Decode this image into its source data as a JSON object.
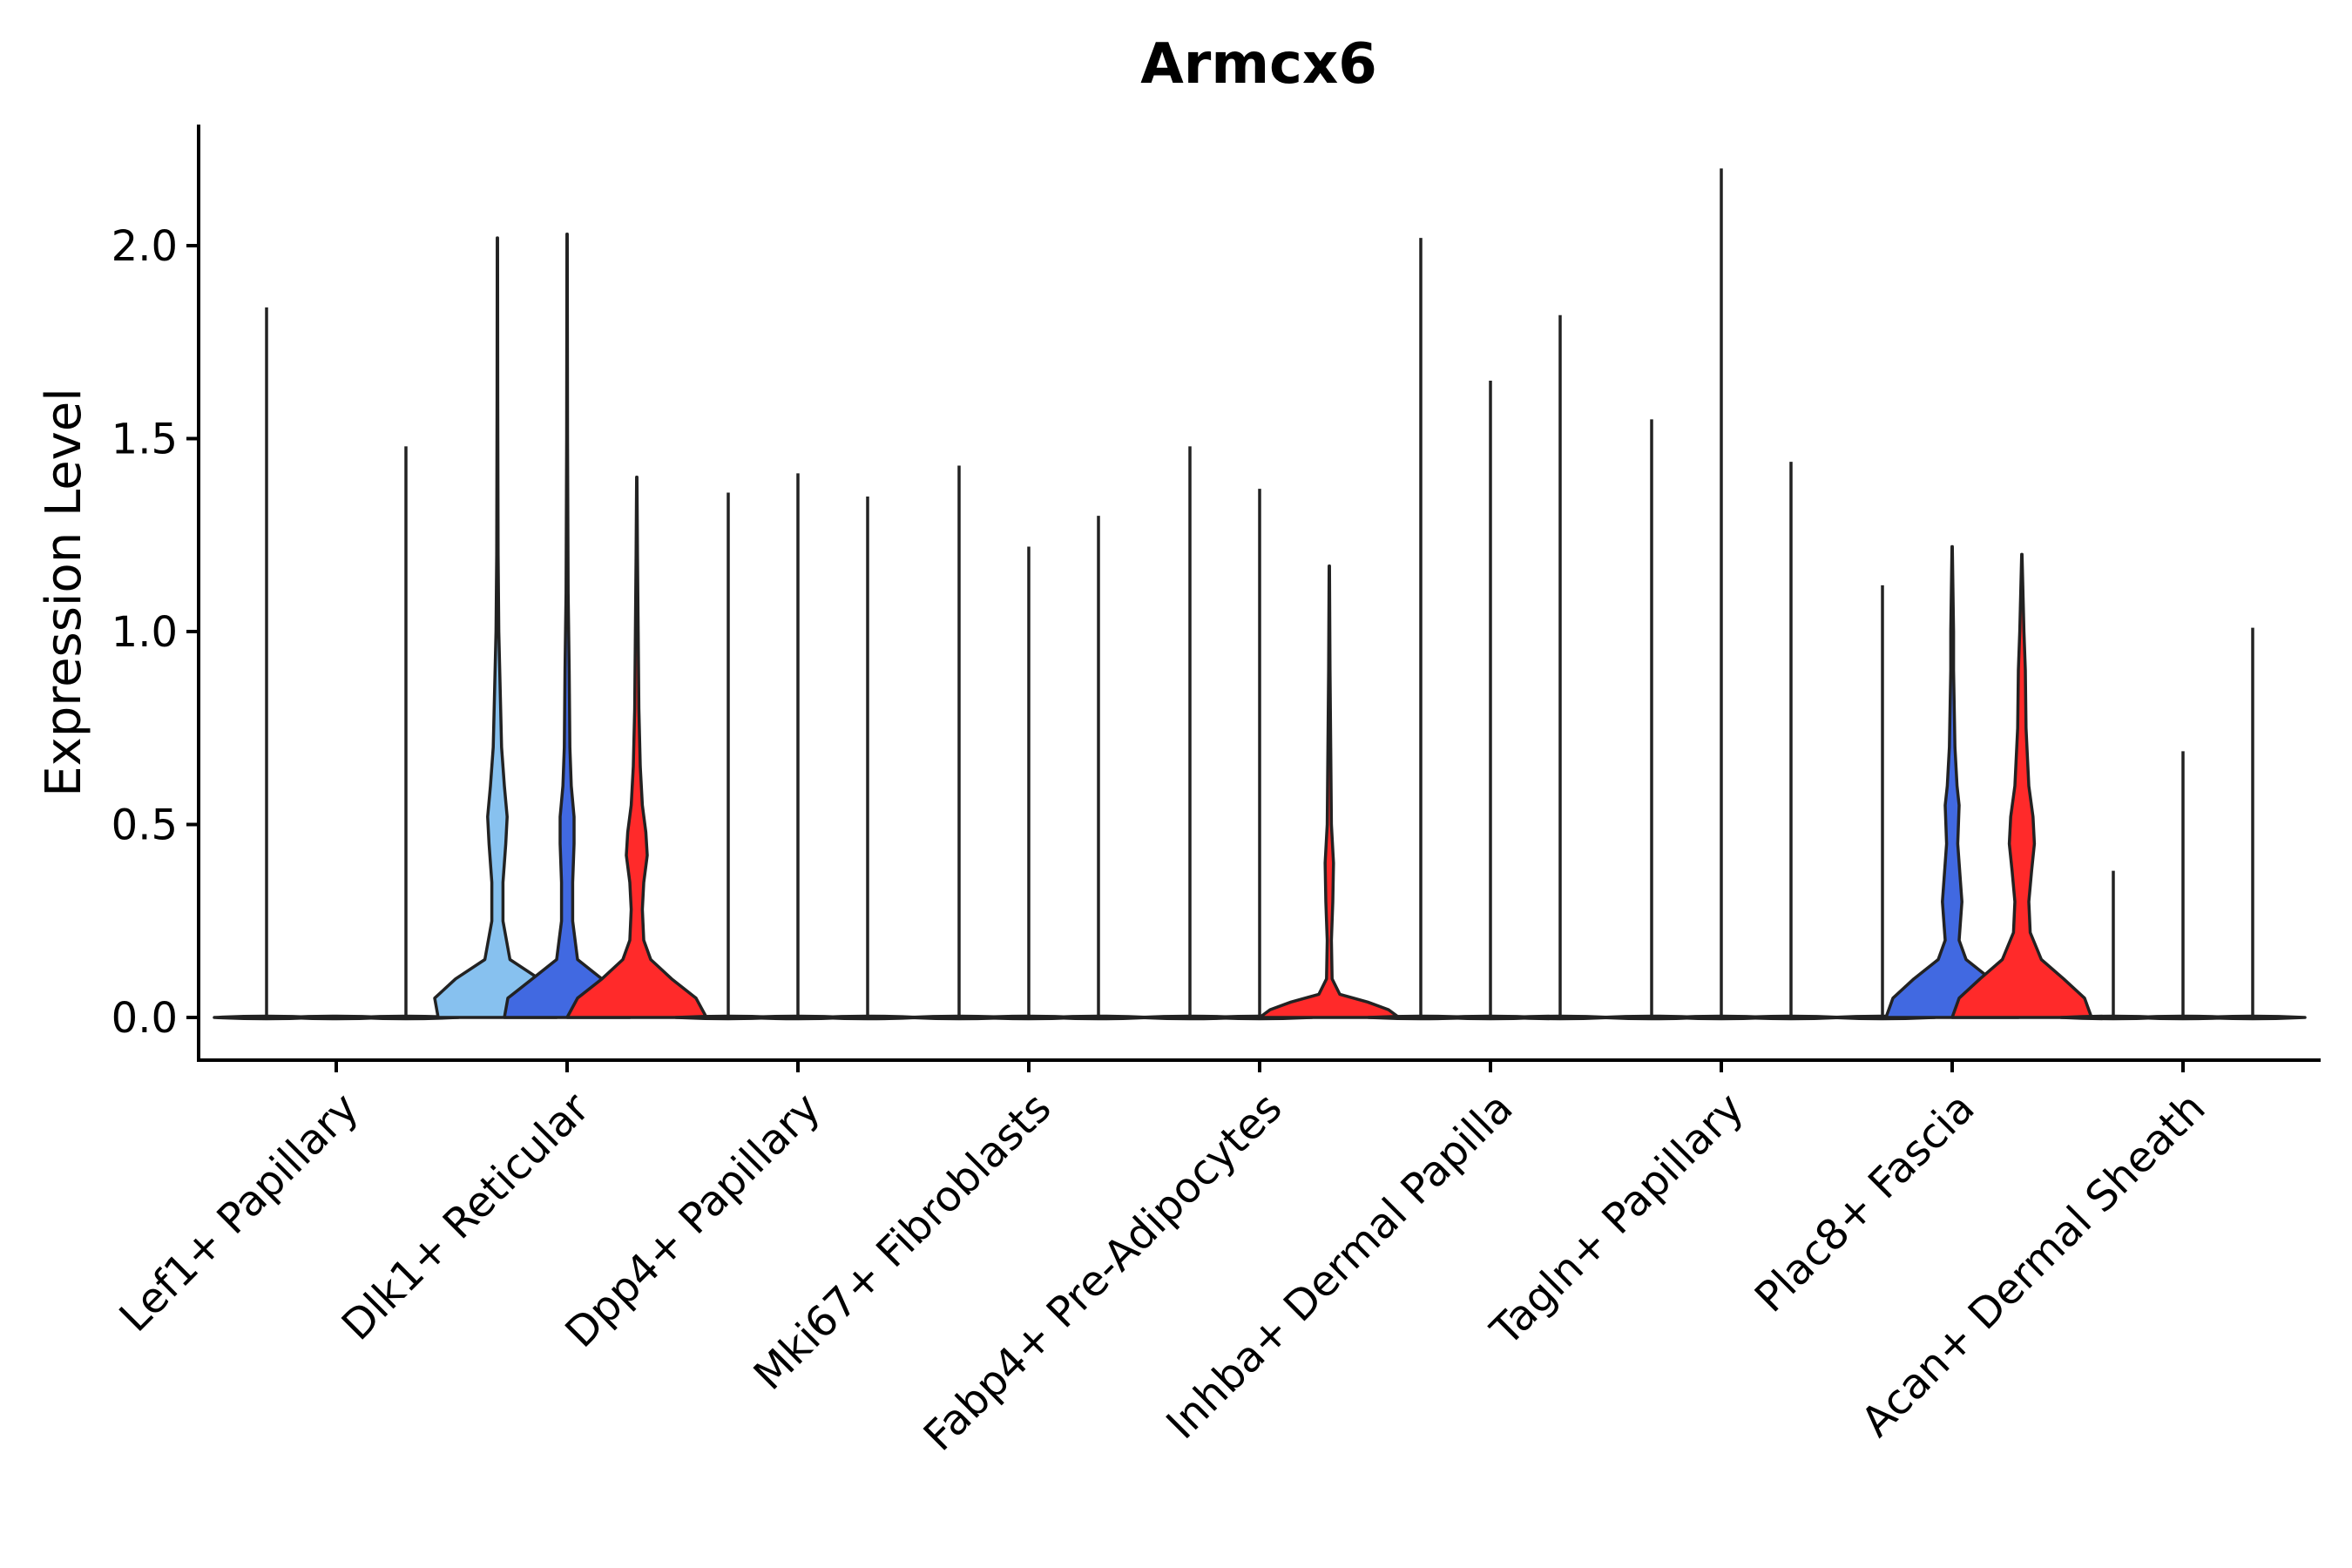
{
  "chart_data": {
    "type": "violin",
    "title": "Armcx6",
    "xlabel": "",
    "ylabel": "Expression Level",
    "ylim": [
      -0.11,
      2.32
    ],
    "yticks": [
      0.0,
      0.5,
      1.0,
      1.5,
      2.0
    ],
    "ytick_labels": [
      "0.0",
      "0.5",
      "1.0",
      "1.5",
      "2.0"
    ],
    "categories": [
      "Lef1+ Papillary",
      "Dlk1+ Reticular",
      "Dpp4+ Papillary",
      "Mki67+ Fibroblasts",
      "Fabp4+ Pre-Adipocytes",
      "Inhba+ Dermal Papilla",
      "Tagln+ Papillary",
      "Plac8+ Fascia",
      "Acan+ Dermal Sheath"
    ],
    "groups_per_category": 3,
    "series": [
      {
        "name": "group-1",
        "color": "#87c1ef",
        "max_values": [
          1.84,
          2.02,
          1.36,
          1.43,
          1.48,
          2.02,
          1.55,
          1.12,
          0.38
        ]
      },
      {
        "name": "group-2",
        "color": "#4169e1",
        "max_values": [
          0.0,
          2.03,
          1.41,
          1.22,
          1.37,
          1.65,
          2.2,
          1.22,
          0.69
        ]
      },
      {
        "name": "group-3",
        "color": "#ff2a2a",
        "max_values": [
          1.48,
          1.4,
          1.35,
          1.3,
          1.17,
          1.82,
          1.44,
          1.2,
          1.01
        ]
      }
    ],
    "filled_violins": [
      {
        "category": "Dlk1+ Reticular",
        "series": "group-1",
        "profile": [
          [
            0.0,
            0.85
          ],
          [
            0.05,
            0.9
          ],
          [
            0.1,
            0.6
          ],
          [
            0.15,
            0.18
          ],
          [
            0.25,
            0.08
          ],
          [
            0.35,
            0.08
          ],
          [
            0.45,
            0.12
          ],
          [
            0.52,
            0.14
          ],
          [
            0.6,
            0.1
          ],
          [
            0.7,
            0.06
          ],
          [
            0.85,
            0.04
          ],
          [
            1.0,
            0.02
          ],
          [
            1.2,
            0.01
          ],
          [
            1.6,
            0.005
          ],
          [
            2.02,
            0.003
          ]
        ]
      },
      {
        "category": "Dlk1+ Reticular",
        "series": "group-2",
        "profile": [
          [
            0.0,
            0.9
          ],
          [
            0.05,
            0.85
          ],
          [
            0.1,
            0.5
          ],
          [
            0.15,
            0.15
          ],
          [
            0.25,
            0.08
          ],
          [
            0.35,
            0.08
          ],
          [
            0.45,
            0.1
          ],
          [
            0.52,
            0.1
          ],
          [
            0.6,
            0.06
          ],
          [
            0.7,
            0.04
          ],
          [
            0.9,
            0.03
          ],
          [
            1.1,
            0.015
          ],
          [
            1.5,
            0.006
          ],
          [
            2.03,
            0.003
          ]
        ]
      },
      {
        "category": "Dlk1+ Reticular",
        "series": "group-3",
        "profile": [
          [
            0.0,
            1.0
          ],
          [
            0.05,
            0.85
          ],
          [
            0.1,
            0.5
          ],
          [
            0.15,
            0.2
          ],
          [
            0.2,
            0.1
          ],
          [
            0.28,
            0.08
          ],
          [
            0.35,
            0.1
          ],
          [
            0.42,
            0.15
          ],
          [
            0.48,
            0.13
          ],
          [
            0.55,
            0.08
          ],
          [
            0.65,
            0.05
          ],
          [
            0.8,
            0.03
          ],
          [
            1.0,
            0.02
          ],
          [
            1.2,
            0.01
          ],
          [
            1.4,
            0.003
          ]
        ]
      },
      {
        "category": "Fabp4+ Pre-Adipocytes",
        "series": "group-3",
        "profile": [
          [
            0.0,
            1.0
          ],
          [
            0.02,
            0.85
          ],
          [
            0.04,
            0.55
          ],
          [
            0.06,
            0.15
          ],
          [
            0.1,
            0.04
          ],
          [
            0.2,
            0.03
          ],
          [
            0.3,
            0.05
          ],
          [
            0.4,
            0.06
          ],
          [
            0.5,
            0.03
          ],
          [
            0.7,
            0.02
          ],
          [
            0.9,
            0.01
          ],
          [
            1.17,
            0.003
          ]
        ]
      },
      {
        "category": "Plac8+ Fascia",
        "series": "group-2",
        "profile": [
          [
            0.0,
            0.95
          ],
          [
            0.05,
            0.85
          ],
          [
            0.1,
            0.55
          ],
          [
            0.15,
            0.2
          ],
          [
            0.2,
            0.1
          ],
          [
            0.3,
            0.14
          ],
          [
            0.35,
            0.12
          ],
          [
            0.45,
            0.08
          ],
          [
            0.55,
            0.1
          ],
          [
            0.6,
            0.07
          ],
          [
            0.7,
            0.04
          ],
          [
            0.9,
            0.02
          ],
          [
            1.0,
            0.02
          ],
          [
            1.22,
            0.003
          ]
        ]
      },
      {
        "category": "Plac8+ Fascia",
        "series": "group-3",
        "profile": [
          [
            0.0,
            1.0
          ],
          [
            0.05,
            0.9
          ],
          [
            0.1,
            0.6
          ],
          [
            0.15,
            0.28
          ],
          [
            0.22,
            0.12
          ],
          [
            0.3,
            0.1
          ],
          [
            0.38,
            0.14
          ],
          [
            0.45,
            0.18
          ],
          [
            0.52,
            0.16
          ],
          [
            0.6,
            0.1
          ],
          [
            0.75,
            0.06
          ],
          [
            0.9,
            0.05
          ],
          [
            1.0,
            0.03
          ],
          [
            1.2,
            0.003
          ]
        ]
      }
    ],
    "grid": false,
    "legend": "none"
  }
}
